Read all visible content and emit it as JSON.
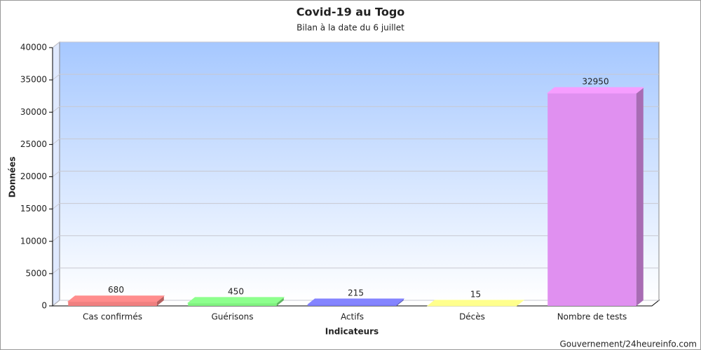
{
  "chart_data": {
    "type": "bar3d",
    "title": "Covid-19 au Togo",
    "subtitle": "Bilan à la date du 6 juillet",
    "x_label": "Indicateurs",
    "y_label": "Données",
    "credit": "Gouvernement/24heureinfo.com",
    "categories": [
      "Cas confirmés",
      "Guérisons",
      "Actifs",
      "Décès",
      "Nombre de tests"
    ],
    "values": [
      680,
      450,
      215,
      15,
      32950
    ],
    "colors": [
      "#f08080",
      "#80f080",
      "#7878f0",
      "#f0f080",
      "#e090f0"
    ],
    "ylim": [
      0,
      40000
    ],
    "yticks": [
      0,
      5000,
      10000,
      15000,
      20000,
      25000,
      30000,
      35000,
      40000
    ],
    "grid": true
  }
}
